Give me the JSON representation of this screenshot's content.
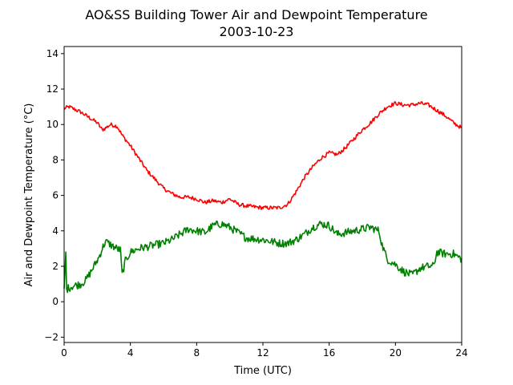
{
  "chart_data": {
    "type": "line",
    "title": "AO&SS Building Tower Air and Dewpoint Temperature",
    "subtitle": "2003-10-23",
    "xlabel": "Time (UTC)",
    "ylabel": "Air and Dewpoint Temperature (°C)",
    "xlim": [
      0,
      24
    ],
    "ylim": [
      -2.3,
      14.4
    ],
    "xticks": [
      0,
      4,
      8,
      12,
      16,
      20,
      24
    ],
    "yticks": [
      -2,
      0,
      2,
      4,
      6,
      8,
      10,
      12,
      14
    ],
    "grid": false,
    "legend": "none",
    "series": [
      {
        "color": "#ff0000",
        "noise": 0.22,
        "x": [
          0,
          0.3,
          1,
          1.5,
          2,
          2.3,
          2.5,
          2.8,
          3.2,
          3.5,
          4,
          4.5,
          5,
          5.5,
          6,
          6.5,
          7,
          7.5,
          8,
          8.5,
          9,
          9.5,
          10,
          10.5,
          11,
          12,
          13,
          13.5,
          14,
          14.5,
          15,
          15.5,
          16,
          16.5,
          17,
          17.5,
          18,
          18.5,
          19,
          19.5,
          20,
          20.5,
          21,
          21.5,
          22,
          22.5,
          23,
          23.5,
          24
        ],
        "y": [
          10.9,
          11.0,
          10.7,
          10.4,
          10.1,
          9.7,
          9.8,
          10.0,
          9.9,
          9.4,
          8.8,
          8.1,
          7.4,
          6.9,
          6.4,
          6.1,
          5.9,
          5.9,
          5.8,
          5.6,
          5.7,
          5.6,
          5.8,
          5.5,
          5.4,
          5.3,
          5.3,
          5.5,
          6.2,
          7.0,
          7.6,
          8.1,
          8.4,
          8.3,
          8.7,
          9.2,
          9.7,
          10.1,
          10.6,
          11.0,
          11.2,
          11.1,
          11.1,
          11.2,
          11.1,
          10.8,
          10.5,
          10.1,
          9.8
        ]
      },
      {
        "color": "#008000",
        "noise": 0.45,
        "x": [
          0,
          0.1,
          0.15,
          0.3,
          0.6,
          1,
          1.3,
          1.5,
          1.8,
          2.1,
          2.3,
          2.5,
          3.0,
          3.4,
          3.5,
          3.7,
          4,
          4.5,
          5,
          5.5,
          6,
          6.5,
          7,
          7.5,
          8,
          8.5,
          9,
          9.5,
          10,
          10.5,
          11,
          12,
          13,
          13.5,
          14,
          14.5,
          15,
          15.5,
          16,
          16.5,
          17,
          17.5,
          18,
          18.5,
          19,
          19.2,
          19.5,
          20,
          20.5,
          21,
          21.5,
          22,
          22.3,
          22.5,
          23,
          23.5,
          24
        ],
        "y": [
          0.6,
          2.7,
          0.7,
          0.8,
          0.9,
          1.0,
          1.2,
          1.5,
          2.0,
          2.5,
          3.0,
          3.4,
          3.1,
          2.9,
          1.5,
          2.3,
          2.8,
          3.0,
          3.1,
          3.2,
          3.3,
          3.5,
          3.8,
          4.1,
          4.0,
          3.9,
          4.3,
          4.4,
          4.2,
          3.9,
          3.6,
          3.5,
          3.3,
          3.3,
          3.5,
          3.8,
          4.2,
          4.4,
          4.3,
          3.8,
          3.9,
          4.0,
          4.1,
          4.2,
          4.0,
          3.2,
          2.4,
          2.1,
          1.7,
          1.5,
          1.9,
          2.0,
          2.0,
          2.8,
          2.7,
          2.7,
          2.4
        ]
      }
    ]
  }
}
